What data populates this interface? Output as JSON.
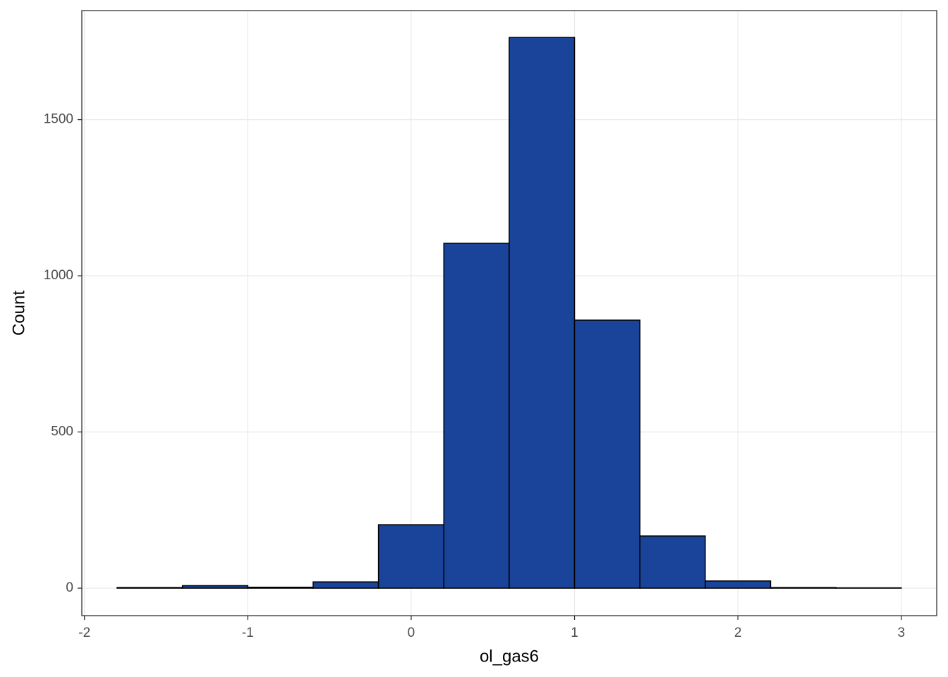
{
  "chart_data": {
    "type": "histogram",
    "x_label": "ol_gas6",
    "y_label": "Count",
    "bins": [
      -1.8,
      -1.4,
      -1.0,
      -0.6,
      -0.2,
      0.2,
      0.6,
      1.0,
      1.4,
      1.8,
      2.2,
      2.6,
      3.0
    ],
    "counts": [
      2,
      8,
      3,
      20,
      203,
      1104,
      1763,
      858,
      167,
      23,
      2,
      1
    ],
    "color": "#1a4499",
    "edge_color": "#000000",
    "xlim": [
      -2.016,
      3.217
    ],
    "xticks": [
      -2,
      -1,
      0,
      1,
      2,
      3
    ],
    "ylim": [
      -88,
      1849
    ],
    "yticks": [
      0,
      500,
      1000,
      1500
    ],
    "grid": true
  }
}
